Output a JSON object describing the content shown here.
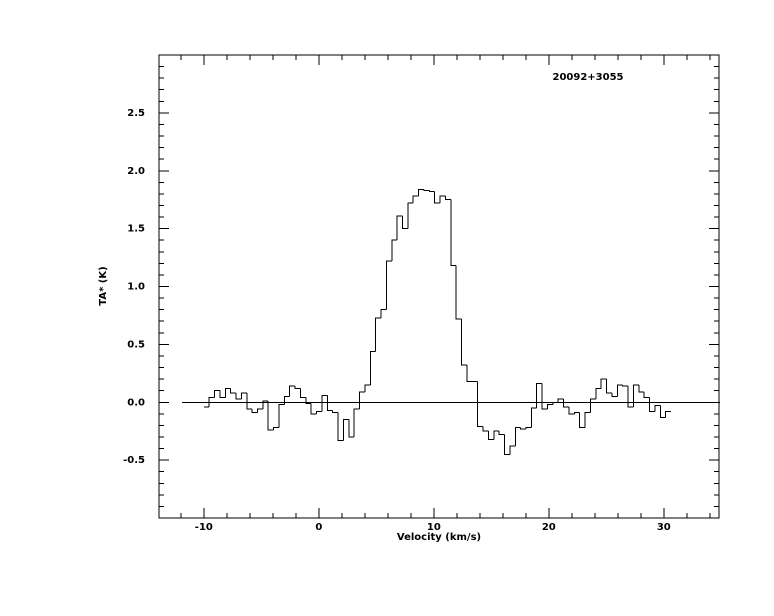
{
  "chart_data": {
    "type": "step",
    "title": "20092+3055",
    "xlabel": "Velocity (km/s)",
    "ylabel": "TA* (K)",
    "xlim": [
      -13.9,
      34.8
    ],
    "ylim": [
      -1.0,
      3.0
    ],
    "xticks": [
      -10,
      0,
      10,
      20,
      30
    ],
    "yticks": [
      {
        "value": -0.5,
        "label": "-0.5"
      },
      {
        "value": 0,
        "label": "0.0"
      },
      {
        "value": 0.5,
        "label": "0.5"
      },
      {
        "value": 1,
        "label": "1.0"
      },
      {
        "value": 1.5,
        "label": "1.5"
      },
      {
        "value": 2,
        "label": "2.0"
      },
      {
        "value": 2.5,
        "label": "2.5"
      }
    ],
    "xminor": 2,
    "yminor": 0.1,
    "baseline": {
      "y": 0,
      "x": [
        -11.9,
        34.9
      ]
    },
    "color": "#000000",
    "x": [
      -9.77,
      -9.3,
      -8.84,
      -8.37,
      -7.9,
      -7.44,
      -6.97,
      -6.5,
      -6.03,
      -5.57,
      -5.1,
      -4.63,
      -4.17,
      -3.7,
      -3.23,
      -2.77,
      -2.3,
      -1.83,
      -1.36,
      -0.9,
      -0.43,
      0.04,
      0.5,
      0.97,
      1.44,
      1.91,
      2.37,
      2.84,
      3.31,
      3.77,
      4.24,
      4.71,
      5.17,
      5.64,
      6.11,
      6.58,
      7.04,
      7.51,
      7.98,
      8.44,
      8.91,
      9.38,
      9.84,
      10.31,
      10.78,
      11.25,
      11.71,
      12.18,
      12.65,
      13.11,
      13.58,
      14.05,
      14.51,
      14.98,
      15.45,
      15.92,
      16.38,
      16.85,
      17.32,
      17.78,
      18.25,
      18.72,
      19.18,
      19.65,
      20.12,
      20.59,
      21.05,
      21.52,
      21.99,
      22.45,
      22.92,
      23.39,
      23.85,
      24.32,
      24.79,
      25.26,
      25.72,
      26.19,
      26.66,
      27.12,
      27.59,
      28.06,
      28.52,
      28.99,
      29.46,
      29.93,
      30.39
    ],
    "values": [
      -0.04,
      0.04,
      0.1,
      0.04,
      0.12,
      0.08,
      0.03,
      0.08,
      -0.06,
      -0.09,
      -0.06,
      0.01,
      -0.24,
      -0.22,
      -0.02,
      0.05,
      0.14,
      0.12,
      0.04,
      -0.01,
      -0.1,
      -0.08,
      0.06,
      -0.07,
      -0.09,
      -0.33,
      -0.15,
      -0.3,
      -0.06,
      0.09,
      0.15,
      0.44,
      0.73,
      0.8,
      1.22,
      1.4,
      1.61,
      1.5,
      1.72,
      1.78,
      1.84,
      1.83,
      1.82,
      1.72,
      1.78,
      1.75,
      1.18,
      0.72,
      0.32,
      0.18,
      0.18,
      -0.21,
      -0.25,
      -0.32,
      -0.25,
      -0.28,
      -0.45,
      -0.38,
      -0.22,
      -0.23,
      -0.22,
      -0.05,
      0.16,
      -0.06,
      -0.02,
      0.0,
      0.03,
      -0.04,
      -0.1,
      -0.09,
      -0.22,
      -0.09,
      0.03,
      0.12,
      0.2,
      0.08,
      0.05,
      0.15,
      0.14,
      -0.04,
      0.15,
      0.09,
      0.04,
      -0.08,
      -0.03,
      -0.13,
      -0.08
    ]
  }
}
